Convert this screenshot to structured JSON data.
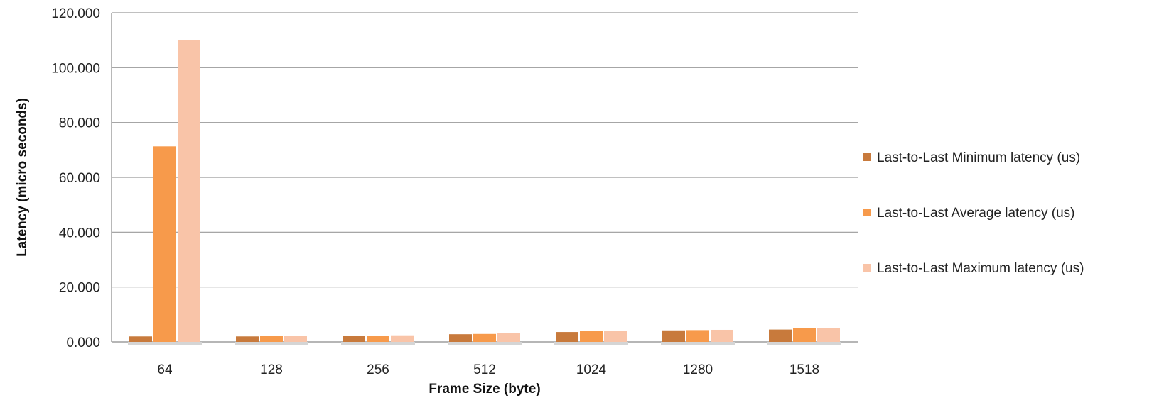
{
  "chart_data": {
    "type": "bar",
    "xlabel": "Frame Size (byte)",
    "ylabel": "Latency (micro seconds)",
    "ylim": [
      0,
      120
    ],
    "y_ticks": [
      0,
      20,
      40,
      60,
      80,
      100,
      120
    ],
    "y_tick_labels": [
      "0.000",
      "20.000",
      "40.000",
      "60.000",
      "80.000",
      "100.000",
      "120.000"
    ],
    "categories": [
      "64",
      "128",
      "256",
      "512",
      "1024",
      "1280",
      "1518"
    ],
    "grid": true,
    "legend_position": "right",
    "series": [
      {
        "name": "Last-to-Last Minimum latency (us)",
        "color": "#c87a3c",
        "values": [
          2.0,
          2.0,
          2.2,
          2.8,
          3.6,
          4.2,
          4.5
        ]
      },
      {
        "name": "Last-to-Last Average latency (us)",
        "color": "#f79a4b",
        "values": [
          71.3,
          2.1,
          2.3,
          2.9,
          4.0,
          4.3,
          5.0
        ]
      },
      {
        "name": "Last-to-Last Maximum latency (us)",
        "color": "#f9c4a8",
        "values": [
          110.0,
          2.2,
          2.4,
          3.1,
          4.1,
          4.4,
          5.1
        ]
      }
    ]
  }
}
